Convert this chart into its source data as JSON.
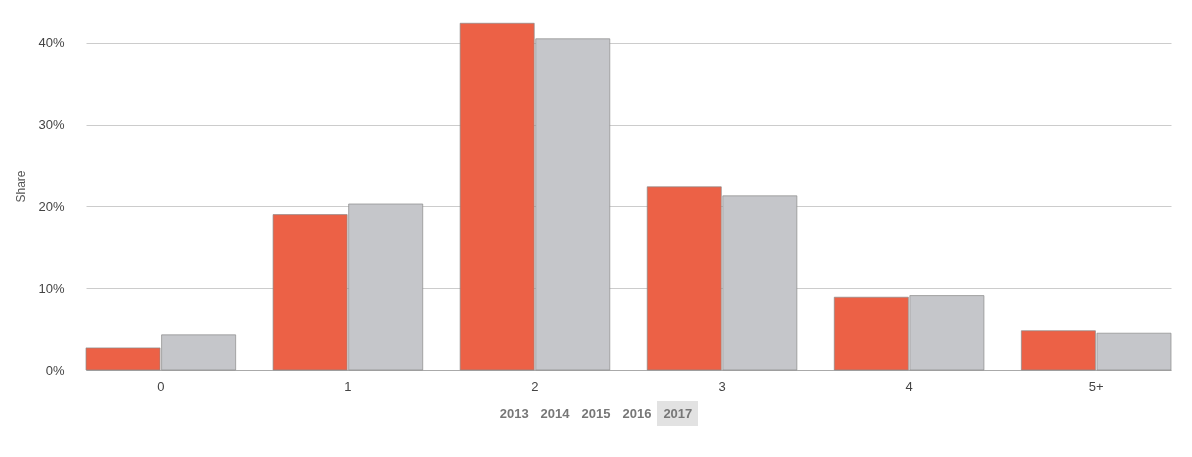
{
  "chart_data": {
    "type": "bar",
    "ylabel": "Share",
    "categories": [
      "0",
      "1",
      "2",
      "3",
      "4",
      "5+"
    ],
    "series": [
      {
        "color": "#ec6146",
        "values": [
          2.7,
          19.0,
          42.4,
          22.4,
          8.9,
          4.8
        ]
      },
      {
        "color": "#c5c6ca",
        "values": [
          4.3,
          20.3,
          40.5,
          21.3,
          9.1,
          4.5
        ]
      }
    ],
    "ylim": [
      0,
      45
    ],
    "yticks": [
      {
        "value": 0,
        "label": "0%"
      },
      {
        "value": 10,
        "label": "10%"
      },
      {
        "value": 20,
        "label": "20%"
      },
      {
        "value": 30,
        "label": "30%"
      },
      {
        "value": 40,
        "label": "40%"
      }
    ],
    "grid": "y",
    "legend": false,
    "annotations": [
      "2013",
      "2014",
      "2015",
      "2016",
      "2017"
    ]
  }
}
